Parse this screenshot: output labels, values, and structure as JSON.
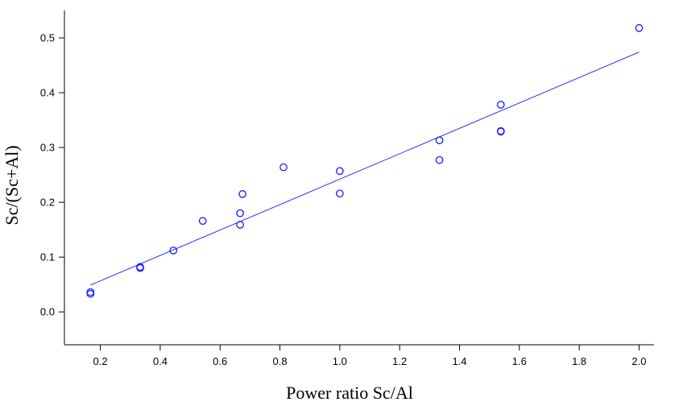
{
  "chart_data": {
    "type": "scatter",
    "title": "",
    "xlabel": "Power ratio Sc/Al",
    "ylabel": "Sc/(Sc+Al)",
    "xlim": [
      0.08,
      2.05
    ],
    "ylim": [
      -0.06,
      0.55
    ],
    "x_ticks": [
      0.2,
      0.4,
      0.6,
      0.8,
      1.0,
      1.2,
      1.4,
      1.6,
      1.8,
      2.0
    ],
    "x_tick_labels": [
      "0.2",
      "0.4",
      "0.6",
      "0.8",
      "1.0",
      "1.2",
      "1.4",
      "1.6",
      "1.8",
      "2.0"
    ],
    "y_ticks": [
      0.0,
      0.1,
      0.2,
      0.3,
      0.4,
      0.5
    ],
    "y_tick_labels": [
      "0.0",
      "0.1",
      "0.2",
      "0.3",
      "0.4",
      "0.5"
    ],
    "grid": false,
    "marker_color": "#1a1aff",
    "line_color": "#1a1aff",
    "points": [
      {
        "x": 0.167,
        "y": 0.036
      },
      {
        "x": 0.167,
        "y": 0.033
      },
      {
        "x": 0.333,
        "y": 0.082
      },
      {
        "x": 0.333,
        "y": 0.08
      },
      {
        "x": 0.444,
        "y": 0.112
      },
      {
        "x": 0.542,
        "y": 0.166
      },
      {
        "x": 0.667,
        "y": 0.18
      },
      {
        "x": 0.667,
        "y": 0.159
      },
      {
        "x": 0.675,
        "y": 0.215
      },
      {
        "x": 0.812,
        "y": 0.264
      },
      {
        "x": 1.0,
        "y": 0.257
      },
      {
        "x": 1.0,
        "y": 0.216
      },
      {
        "x": 1.333,
        "y": 0.313
      },
      {
        "x": 1.333,
        "y": 0.277
      },
      {
        "x": 1.538,
        "y": 0.378
      },
      {
        "x": 1.538,
        "y": 0.33
      },
      {
        "x": 1.538,
        "y": 0.329
      },
      {
        "x": 2.0,
        "y": 0.518
      }
    ],
    "fit_line": {
      "x": [
        0.167,
        2.0
      ],
      "y": [
        0.049,
        0.474
      ]
    }
  }
}
